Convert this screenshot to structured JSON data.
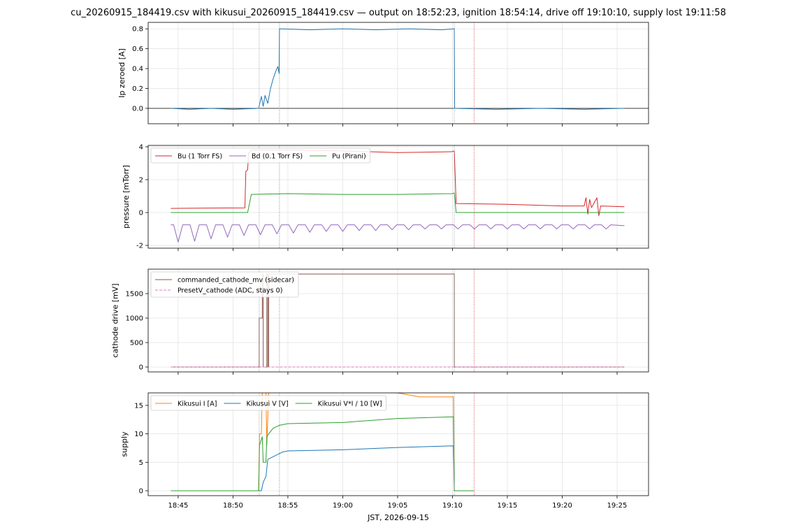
{
  "title": "cu_20260915_184419.csv with kikusui_20260915_184419.csv — output on 18:52:23, ignition 18:54:14, drive off 19:10:10, supply lost 19:11:58",
  "chart_data": [
    {
      "type": "line",
      "ylabel": "Ip zeroed [A]",
      "grid": true,
      "zero_line": true,
      "xlim": [
        "18:42:16",
        "19:27:52"
      ],
      "xticks": [
        "18:45",
        "18:50",
        "18:55",
        "19:00",
        "19:05",
        "19:10",
        "19:15",
        "19:20",
        "19:25"
      ],
      "ylim": [
        -0.155,
        0.865
      ],
      "yticks": [
        {
          "value": 0,
          "label": "0.0"
        },
        0.2,
        0.4,
        0.6,
        0.8
      ],
      "vlines": [
        {
          "x": "18:52:23",
          "color": "#888888"
        },
        {
          "x": "18:54:14",
          "color": "#2ca02c"
        },
        {
          "x": "19:10:10",
          "color": "#888888"
        },
        {
          "x": "19:11:58",
          "color": "#d62728"
        }
      ],
      "series": [
        {
          "color": "#1f77b4",
          "x": [
            "18:44:20",
            "18:46:00",
            "18:48:00",
            "18:50:00",
            "18:52:20",
            "18:52:35",
            "18:52:45",
            "18:52:55",
            "18:53:10",
            "18:53:25",
            "18:53:40",
            "18:53:55",
            "18:54:05",
            "18:54:12",
            "18:54:14",
            "18:57:00",
            "19:00:00",
            "19:03:00",
            "19:06:00",
            "19:09:00",
            "19:10:10",
            "19:10:12",
            "19:14:00",
            "19:18:00",
            "19:22:00",
            "19:25:40"
          ],
          "values": [
            0.0,
            -0.01,
            0.0,
            -0.01,
            0.0,
            0.12,
            0.02,
            0.13,
            0.05,
            0.2,
            0.3,
            0.38,
            0.42,
            0.35,
            0.8,
            0.79,
            0.8,
            0.79,
            0.8,
            0.79,
            0.8,
            0.0,
            -0.01,
            0.0,
            -0.01,
            0.0
          ]
        }
      ]
    },
    {
      "type": "line",
      "ylabel": "pressure [mTorr]",
      "grid": true,
      "legend": "upper left",
      "legend_columns": 3,
      "xlim": [
        "18:42:16",
        "19:27:52"
      ],
      "xticks": [
        "18:45",
        "18:50",
        "18:55",
        "19:00",
        "19:05",
        "19:10",
        "19:15",
        "19:20",
        "19:25"
      ],
      "ylim": [
        -2.17,
        4.085
      ],
      "yticks": [
        -2,
        0,
        2,
        4
      ],
      "vlines": [
        {
          "x": "18:52:23",
          "color": "#888888"
        },
        {
          "x": "18:54:14",
          "color": "#2ca02c"
        },
        {
          "x": "19:10:10",
          "color": "#888888"
        },
        {
          "x": "19:11:58",
          "color": "#d62728"
        }
      ],
      "series": [
        {
          "name": "Bu (1 Torr FS)",
          "color": "#d62728",
          "x": [
            "18:44:20",
            "18:48:00",
            "18:51:05",
            "18:51:10",
            "18:51:20",
            "18:51:25",
            "18:51:40",
            "18:55:00",
            "19:00:00",
            "19:05:00",
            "19:09:55",
            "19:10:10",
            "19:10:20",
            "19:15:00",
            "19:20:00",
            "19:22:00",
            "19:22:10",
            "19:22:20",
            "19:22:30",
            "19:22:40",
            "19:23:10",
            "19:23:20",
            "19:23:30",
            "19:25:40"
          ],
          "values": [
            0.25,
            0.27,
            0.28,
            2.5,
            2.6,
            3.6,
            3.8,
            3.8,
            3.75,
            3.65,
            3.7,
            3.75,
            0.55,
            0.5,
            0.4,
            0.4,
            0.9,
            -0.1,
            0.8,
            0.3,
            0.9,
            -0.2,
            0.4,
            0.35
          ]
        },
        {
          "name": "Bd (0.1 Torr FS)",
          "color": "#9467bd",
          "x": [
            "18:44:20",
            "18:44:35",
            "18:45:00",
            "18:45:25",
            "18:46:05",
            "18:46:30",
            "18:46:55",
            "18:47:35",
            "18:48:00",
            "18:48:25",
            "18:49:05",
            "18:49:30",
            "18:49:55",
            "18:50:35",
            "18:51:00",
            "18:51:25",
            "18:52:05",
            "18:52:30",
            "18:52:55",
            "18:53:35",
            "18:54:00",
            "18:54:25",
            "18:55:05",
            "18:55:30",
            "18:55:55",
            "18:56:35",
            "18:57:00",
            "18:57:25",
            "18:58:05",
            "18:58:30",
            "18:58:55",
            "18:59:35",
            "19:00:00",
            "19:00:25",
            "19:01:05",
            "19:01:30",
            "19:01:55",
            "19:02:35",
            "19:03:00",
            "19:03:25",
            "19:04:05",
            "19:04:30",
            "19:04:55",
            "19:05:35",
            "19:06:00",
            "19:06:25",
            "19:07:05",
            "19:07:30",
            "19:07:55",
            "19:08:35",
            "19:09:00",
            "19:09:25",
            "19:10:05",
            "19:10:30",
            "19:10:55",
            "19:11:35",
            "19:12:00",
            "19:12:25",
            "19:13:05",
            "19:13:30",
            "19:13:55",
            "19:14:35",
            "19:15:00",
            "19:15:25",
            "19:16:05",
            "19:16:30",
            "19:16:55",
            "19:17:35",
            "19:18:00",
            "19:18:25",
            "19:19:05",
            "19:19:30",
            "19:19:55",
            "19:20:35",
            "19:21:00",
            "19:21:25",
            "19:22:05",
            "19:22:30",
            "19:22:55",
            "19:23:35",
            "19:24:00",
            "19:24:25",
            "19:25:40"
          ],
          "values": [
            -0.75,
            -0.75,
            -1.8,
            -0.75,
            -0.75,
            -1.75,
            -0.75,
            -0.75,
            -1.6,
            -0.75,
            -0.75,
            -1.5,
            -0.75,
            -0.75,
            -1.4,
            -0.75,
            -0.75,
            -1.35,
            -0.75,
            -0.75,
            -1.3,
            -0.75,
            -0.75,
            -1.25,
            -0.75,
            -0.75,
            -1.2,
            -0.75,
            -0.75,
            -1.15,
            -0.75,
            -0.75,
            -1.15,
            -0.75,
            -0.75,
            -1.1,
            -0.75,
            -0.75,
            -1.1,
            -0.75,
            -0.75,
            -1.05,
            -0.75,
            -0.75,
            -1.05,
            -0.75,
            -0.75,
            -1.0,
            -0.75,
            -0.75,
            -1.0,
            -0.75,
            -0.75,
            -1.0,
            -0.75,
            -0.75,
            -1.0,
            -0.75,
            -0.75,
            -1.0,
            -0.75,
            -0.75,
            -1.0,
            -0.75,
            -0.75,
            -1.0,
            -0.75,
            -0.75,
            -1.0,
            -0.75,
            -0.75,
            -1.0,
            -0.75,
            -0.75,
            -1.0,
            -0.75,
            -0.75,
            -1.0,
            -0.75,
            -0.75,
            -1.0,
            -0.75,
            -0.8
          ]
        },
        {
          "name": "Pu (Pirani)",
          "color": "#2ca02c",
          "x": [
            "18:44:20",
            "18:51:20",
            "18:51:40",
            "18:55:00",
            "19:00:00",
            "19:05:00",
            "19:10:00",
            "19:10:10",
            "19:10:20",
            "19:25:40"
          ],
          "values": [
            0,
            0,
            1.1,
            1.15,
            1.1,
            1.1,
            1.15,
            1.2,
            0,
            0
          ]
        }
      ]
    },
    {
      "type": "line",
      "ylabel": "cathode drive [mV]",
      "grid": true,
      "legend": "upper left",
      "legend_columns": 1,
      "xlim": [
        "18:42:16",
        "19:27:52"
      ],
      "xticks": [
        "18:45",
        "18:50",
        "18:55",
        "19:00",
        "19:05",
        "19:10",
        "19:15",
        "19:20",
        "19:25"
      ],
      "ylim": [
        -100,
        2000
      ],
      "yticks": [
        0,
        500,
        1000,
        1500
      ],
      "vlines": [
        {
          "x": "18:52:23",
          "color": "#888888"
        },
        {
          "x": "18:54:14",
          "color": "#2ca02c"
        },
        {
          "x": "19:10:10",
          "color": "#888888"
        },
        {
          "x": "19:11:58",
          "color": "#d62728"
        }
      ],
      "series": [
        {
          "name": "commanded_cathode_mv (sidecar)",
          "color": "#8c564b",
          "x": [
            "18:44:20",
            "18:52:23",
            "18:52:23",
            "18:52:40",
            "18:52:40",
            "18:52:45",
            "18:52:45",
            "18:53:05",
            "18:53:05",
            "18:53:10",
            "18:53:10",
            "18:53:15",
            "18:53:15",
            "19:10:10",
            "19:10:10",
            "19:25:40"
          ],
          "values": [
            0,
            0,
            1000,
            1000,
            1900,
            1900,
            0,
            0,
            1900,
            1900,
            0,
            0,
            1900,
            1900,
            0,
            0
          ]
        },
        {
          "name": "PresetV_cathode (ADC, stays 0)",
          "color": "#e377c2",
          "dash": true,
          "x": [
            "18:44:20",
            "19:25:40"
          ],
          "values": [
            0,
            0
          ]
        }
      ]
    },
    {
      "type": "line",
      "ylabel": "supply",
      "xlabel": "JST, 2026-09-15",
      "grid": true,
      "legend": "upper left",
      "legend_columns": 3,
      "xlim": [
        "18:42:16",
        "19:27:52"
      ],
      "xticks": [
        "18:45",
        "18:50",
        "18:55",
        "19:00",
        "19:05",
        "19:10",
        "19:15",
        "19:20",
        "19:25"
      ],
      "ylim": [
        -0.86,
        17.2
      ],
      "yticks": [
        0,
        5,
        10,
        15
      ],
      "vlines": [
        {
          "x": "18:52:23",
          "color": "#888888"
        },
        {
          "x": "18:54:14",
          "color": "#2ca02c"
        },
        {
          "x": "19:10:10",
          "color": "#888888"
        },
        {
          "x": "19:11:58",
          "color": "#d62728"
        }
      ],
      "series": [
        {
          "name": "Kikusui I [A]",
          "color": "#ff7f0e",
          "x": [
            "18:44:20",
            "18:52:20",
            "18:52:25",
            "18:52:35",
            "18:52:40",
            "18:53:00",
            "18:53:05",
            "18:53:15",
            "18:55:00",
            "19:00:00",
            "19:05:00",
            "19:07:00",
            "19:10:05",
            "19:10:10",
            "19:11:58"
          ],
          "values": [
            0,
            0,
            10,
            10,
            17.5,
            17.5,
            8,
            17.5,
            17.5,
            17.5,
            17.2,
            16.5,
            16.5,
            0,
            0
          ]
        },
        {
          "name": "Kikusui V [V]",
          "color": "#1f77b4",
          "x": [
            "18:44:20",
            "18:52:35",
            "18:52:45",
            "18:53:00",
            "18:53:10",
            "18:53:40",
            "18:54:30",
            "18:55:00",
            "19:00:00",
            "19:05:00",
            "19:10:05",
            "19:10:10",
            "19:11:58"
          ],
          "values": [
            0,
            0,
            1.5,
            2.5,
            5.5,
            6.0,
            6.8,
            7.0,
            7.2,
            7.6,
            7.9,
            0,
            0
          ]
        },
        {
          "name": "Kikusui V*I / 10 [W]",
          "color": "#2ca02c",
          "x": [
            "18:44:20",
            "18:52:20",
            "18:52:25",
            "18:52:40",
            "18:52:45",
            "18:53:00",
            "18:53:05",
            "18:53:15",
            "18:53:40",
            "18:54:14",
            "18:55:00",
            "19:00:00",
            "19:05:00",
            "19:10:05",
            "19:10:10",
            "19:11:58"
          ],
          "values": [
            0,
            0,
            8.0,
            9.5,
            5.0,
            5.0,
            9.5,
            10.0,
            11.0,
            11.5,
            11.8,
            12.0,
            12.7,
            13.0,
            0,
            0
          ]
        }
      ]
    }
  ]
}
